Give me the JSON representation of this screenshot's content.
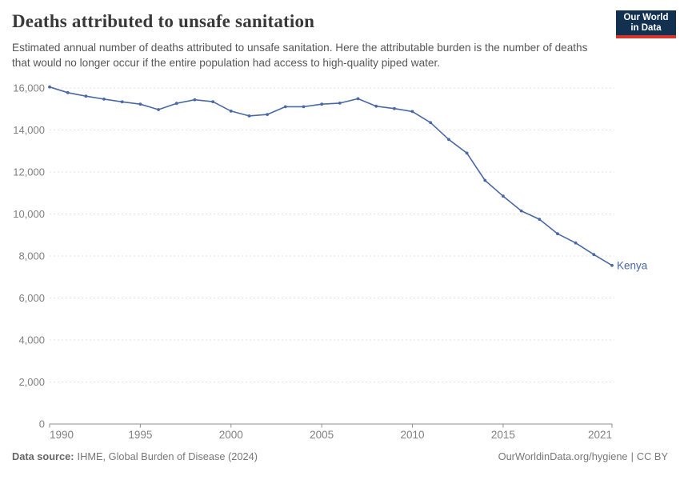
{
  "header": {
    "title": "Deaths attributed to unsafe sanitation",
    "subtitle": "Estimated annual number of deaths attributed to unsafe sanitation. Here the attributable burden is the number of deaths that would no longer occur if the entire population had access to high-quality piped water.",
    "logo": {
      "line1": "Our World",
      "line2": "in Data"
    }
  },
  "chart_data": {
    "type": "line",
    "title": "Deaths attributed to unsafe sanitation",
    "xlabel": "",
    "ylabel": "",
    "xlim": [
      1990,
      2021
    ],
    "ylim": [
      0,
      16000
    ],
    "x_ticks": [
      1990,
      1995,
      2000,
      2005,
      2010,
      2015,
      2021
    ],
    "y_ticks": [
      0,
      2000,
      4000,
      6000,
      8000,
      10000,
      12000,
      14000,
      16000
    ],
    "grid": "horizontal-dashed",
    "legend": "line-end-label",
    "x": [
      1990,
      1991,
      1992,
      1993,
      1994,
      1995,
      1996,
      1997,
      1998,
      1999,
      2000,
      2001,
      2002,
      2003,
      2004,
      2005,
      2006,
      2007,
      2008,
      2009,
      2010,
      2011,
      2012,
      2013,
      2014,
      2015,
      2016,
      2017,
      2018,
      2019,
      2020,
      2021
    ],
    "series": [
      {
        "name": "Kenya",
        "color": "#4a69a4",
        "values": [
          16050,
          15780,
          15610,
          15470,
          15340,
          15230,
          14970,
          15270,
          15440,
          15350,
          14900,
          14670,
          14740,
          15110,
          15110,
          15230,
          15280,
          15490,
          15130,
          15020,
          14880,
          14350,
          13550,
          12900,
          11600,
          10850,
          10150,
          9750,
          9060,
          8620,
          8070,
          7550
        ]
      }
    ]
  },
  "footer": {
    "source_label": "Data source:",
    "source_value": "IHME, Global Burden of Disease (2024)",
    "credit_link": "OurWorldinData.org/hygiene",
    "credit_separator": "|",
    "credit_license": "CC BY"
  },
  "colors": {
    "line": "#4a69a4",
    "logo_background": "#12304f",
    "logo_stripe": "#d7352c",
    "grid": "#e2e2e2",
    "axis": "#8f8f8f",
    "tick_label": "#808080"
  }
}
